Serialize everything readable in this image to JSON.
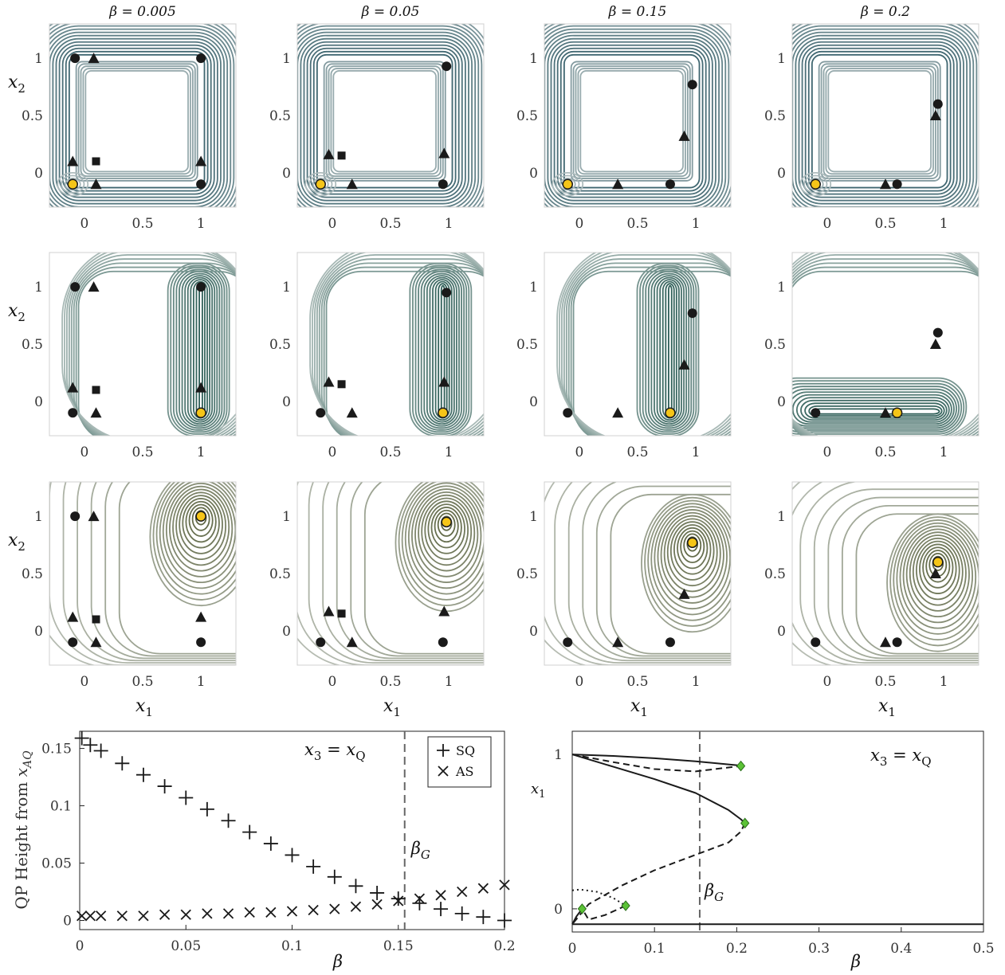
{
  "chart_data": [
    {
      "type": "heatmap",
      "description_rows": 3,
      "columns": [
        {
          "title": "β = 0.005"
        },
        {
          "title": "β = 0.05"
        },
        {
          "title": "β = 0.15"
        },
        {
          "title": "β = 0.2"
        }
      ],
      "xlim": [
        -0.3,
        1.3
      ],
      "ylim": [
        -0.3,
        1.3
      ],
      "xticks": [
        "0",
        "0.5",
        "1"
      ],
      "yticks": [
        "0",
        "0.5",
        "1"
      ],
      "xlabel": "x1",
      "ylabel": "x2",
      "row_colors": [
        "#3f6670",
        "#2f5f58",
        "#5c6440"
      ],
      "panels": [
        [
          {
            "min": [
              -0.1,
              -0.1
            ],
            "circles": [
              [
                -0.08,
                1.0
              ],
              [
                1.0,
                1.0
              ],
              [
                1.0,
                -0.1
              ]
            ],
            "triangles": [
              [
                0.08,
                1.0
              ],
              [
                -0.1,
                0.1
              ],
              [
                0.1,
                -0.1
              ],
              [
                1.0,
                0.1
              ]
            ],
            "squares": [
              [
                0.1,
                0.1
              ]
            ]
          },
          {
            "min": [
              -0.1,
              -0.1
            ],
            "circles": [
              [
                0.98,
                0.93
              ],
              [
                0.95,
                -0.1
              ]
            ],
            "triangles": [
              [
                -0.03,
                0.16
              ],
              [
                0.17,
                -0.1
              ],
              [
                0.96,
                0.17
              ]
            ],
            "squares": [
              [
                0.08,
                0.15
              ]
            ]
          },
          {
            "min": [
              -0.1,
              -0.1
            ],
            "circles": [
              [
                0.97,
                0.77
              ],
              [
                0.78,
                -0.1
              ]
            ],
            "triangles": [
              [
                0.33,
                -0.1
              ],
              [
                0.9,
                0.32
              ]
            ],
            "squares": []
          },
          {
            "min": [
              -0.1,
              -0.1
            ],
            "circles": [
              [
                0.6,
                -0.1
              ],
              [
                0.95,
                0.6
              ]
            ],
            "triangles": [
              [
                0.5,
                -0.1
              ],
              [
                0.93,
                0.5
              ]
            ],
            "squares": []
          }
        ],
        [
          {
            "min": [
              1.0,
              -0.1
            ],
            "circles": [
              [
                -0.08,
                1.0
              ],
              [
                1.0,
                1.0
              ],
              [
                -0.1,
                -0.1
              ]
            ],
            "triangles": [
              [
                0.08,
                1.0
              ],
              [
                -0.1,
                0.12
              ],
              [
                0.1,
                -0.1
              ],
              [
                1.0,
                0.12
              ]
            ],
            "squares": [
              [
                0.1,
                0.1
              ]
            ]
          },
          {
            "min": [
              0.95,
              -0.1
            ],
            "circles": [
              [
                0.98,
                0.95
              ],
              [
                -0.1,
                -0.1
              ]
            ],
            "triangles": [
              [
                -0.03,
                0.17
              ],
              [
                0.17,
                -0.1
              ],
              [
                0.96,
                0.17
              ]
            ],
            "squares": [
              [
                0.08,
                0.15
              ]
            ]
          },
          {
            "min": [
              0.78,
              -0.1
            ],
            "circles": [
              [
                0.97,
                0.77
              ],
              [
                -0.1,
                -0.1
              ]
            ],
            "triangles": [
              [
                0.33,
                -0.1
              ],
              [
                0.9,
                0.32
              ]
            ],
            "squares": []
          },
          {
            "min": [
              0.6,
              -0.1
            ],
            "circles": [
              [
                -0.1,
                -0.1
              ],
              [
                0.95,
                0.6
              ]
            ],
            "triangles": [
              [
                0.5,
                -0.1
              ],
              [
                0.93,
                0.5
              ]
            ],
            "squares": []
          }
        ],
        [
          {
            "min": [
              1.0,
              1.0
            ],
            "circles": [
              [
                -0.08,
                1.0
              ],
              [
                -0.1,
                -0.1
              ],
              [
                1.0,
                -0.1
              ]
            ],
            "triangles": [
              [
                0.08,
                1.0
              ],
              [
                -0.1,
                0.12
              ],
              [
                0.1,
                -0.1
              ],
              [
                1.0,
                0.12
              ]
            ],
            "squares": [
              [
                0.1,
                0.1
              ]
            ]
          },
          {
            "min": [
              0.98,
              0.95
            ],
            "circles": [
              [
                -0.1,
                -0.1
              ],
              [
                0.95,
                -0.1
              ]
            ],
            "triangles": [
              [
                -0.03,
                0.17
              ],
              [
                0.17,
                -0.1
              ],
              [
                0.96,
                0.17
              ]
            ],
            "squares": [
              [
                0.08,
                0.15
              ]
            ]
          },
          {
            "min": [
              0.97,
              0.77
            ],
            "circles": [
              [
                -0.1,
                -0.1
              ],
              [
                0.78,
                -0.1
              ]
            ],
            "triangles": [
              [
                0.33,
                -0.1
              ],
              [
                0.9,
                0.32
              ]
            ],
            "squares": []
          },
          {
            "min": [
              0.95,
              0.6
            ],
            "circles": [
              [
                -0.1,
                -0.1
              ],
              [
                0.6,
                -0.1
              ]
            ],
            "triangles": [
              [
                0.5,
                -0.1
              ],
              [
                0.93,
                0.5
              ]
            ],
            "squares": []
          }
        ]
      ]
    },
    {
      "type": "scatter",
      "ylabel": "QP Height from x_AQ",
      "ylabel_main": "QP Height from ",
      "ylabel_var": "x",
      "ylabel_sub": "AQ",
      "xlabel": "β",
      "xlim": [
        0,
        0.2
      ],
      "ylim": [
        -0.008,
        0.165
      ],
      "xticks": [
        "0",
        "0.05",
        "0.1",
        "0.15",
        "0.2"
      ],
      "yticks": [
        "0",
        "0.05",
        "0.1",
        "0.15"
      ],
      "annotation": "x3 = xQ",
      "annotation_main": "x",
      "annotation_sub1": "3",
      "annotation_eq": " = x",
      "annotation_sub2": "Q",
      "vline": {
        "x": 0.153,
        "label": "β",
        "label_sub": "G"
      },
      "legend": {
        "position": "top-right",
        "entries": [
          "SQ",
          "AS"
        ]
      },
      "series": [
        {
          "name": "SQ",
          "marker": "+",
          "x": [
            0.001,
            0.005,
            0.01,
            0.02,
            0.03,
            0.04,
            0.05,
            0.06,
            0.07,
            0.08,
            0.09,
            0.1,
            0.11,
            0.12,
            0.13,
            0.14,
            0.15,
            0.16,
            0.17,
            0.18,
            0.19,
            0.2
          ],
          "y": [
            0.159,
            0.153,
            0.148,
            0.137,
            0.127,
            0.117,
            0.107,
            0.097,
            0.087,
            0.077,
            0.067,
            0.057,
            0.047,
            0.038,
            0.03,
            0.024,
            0.019,
            0.015,
            0.01,
            0.006,
            0.003,
            0.0
          ]
        },
        {
          "name": "AS",
          "marker": "x",
          "x": [
            0.001,
            0.005,
            0.01,
            0.02,
            0.03,
            0.04,
            0.05,
            0.06,
            0.07,
            0.08,
            0.09,
            0.1,
            0.11,
            0.12,
            0.13,
            0.14,
            0.15,
            0.16,
            0.17,
            0.18,
            0.19,
            0.2
          ],
          "y": [
            0.004,
            0.004,
            0.004,
            0.004,
            0.004,
            0.005,
            0.005,
            0.006,
            0.006,
            0.007,
            0.007,
            0.008,
            0.009,
            0.01,
            0.012,
            0.014,
            0.017,
            0.019,
            0.022,
            0.025,
            0.028,
            0.031
          ]
        }
      ]
    },
    {
      "type": "line",
      "xlabel": "β",
      "ylabel": "x1",
      "xlim": [
        0,
        0.5
      ],
      "ylim": [
        -0.15,
        1.15
      ],
      "xticks": [
        "0",
        "0.1",
        "0.2",
        "0.3",
        "0.4",
        "0.5"
      ],
      "yticks": [
        "0",
        "1"
      ],
      "annotation": "x3 = xQ",
      "vline": {
        "x": 0.155,
        "label": "β",
        "label_sub": "G"
      },
      "branches": [
        {
          "style": "solid",
          "x": [
            0,
            0.05,
            0.1,
            0.15,
            0.2,
            0.205
          ],
          "y": [
            1.0,
            0.99,
            0.975,
            0.955,
            0.93,
            0.925
          ]
        },
        {
          "style": "dashed",
          "x": [
            0,
            0.05,
            0.1,
            0.15,
            0.205
          ],
          "y": [
            1.0,
            0.95,
            0.905,
            0.89,
            0.925
          ]
        },
        {
          "style": "solid",
          "x": [
            0,
            0.05,
            0.1,
            0.15,
            0.19,
            0.205,
            0.21
          ],
          "y": [
            1.0,
            0.92,
            0.84,
            0.75,
            0.64,
            0.58,
            0.555
          ]
        },
        {
          "style": "dashed",
          "x": [
            0.21,
            0.205,
            0.19,
            0.15,
            0.1,
            0.06,
            0.02,
            0
          ],
          "y": [
            0.555,
            0.5,
            0.43,
            0.35,
            0.25,
            0.15,
            0.03,
            -0.1
          ]
        },
        {
          "style": "dotted",
          "x": [
            0,
            0.01,
            0.03,
            0.05,
            0.065
          ],
          "y": [
            0.12,
            0.125,
            0.11,
            0.07,
            0.02
          ]
        },
        {
          "style": "dashed",
          "x": [
            0.065,
            0.04,
            0.02,
            0.012
          ],
          "y": [
            0.02,
            -0.04,
            -0.07,
            0.0
          ]
        },
        {
          "style": "solid",
          "x": [
            0,
            0.005,
            0.012
          ],
          "y": [
            -0.1,
            -0.05,
            0.0
          ]
        },
        {
          "style": "solid",
          "x": [
            0,
            0.5
          ],
          "y": [
            -0.1,
            -0.1
          ]
        }
      ],
      "fold_points": [
        {
          "x": 0.205,
          "y": 0.925
        },
        {
          "x": 0.21,
          "y": 0.555
        },
        {
          "x": 0.065,
          "y": 0.02
        },
        {
          "x": 0.012,
          "y": 0.0
        }
      ]
    }
  ]
}
